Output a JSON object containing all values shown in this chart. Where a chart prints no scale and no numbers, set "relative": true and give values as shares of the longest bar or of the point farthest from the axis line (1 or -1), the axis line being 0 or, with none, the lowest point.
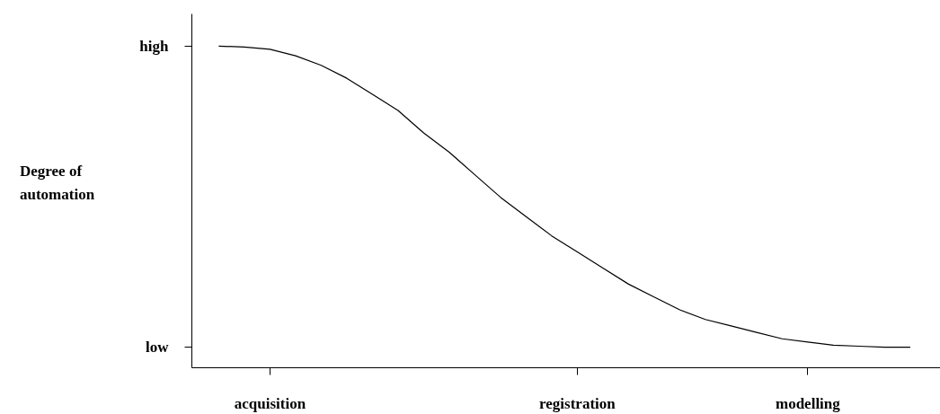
{
  "chart_data": {
    "type": "line",
    "relative": true,
    "annotations": [
      "high",
      "low",
      "Degree of automation"
    ],
    "categories": [
      null,
      null,
      "acquisition",
      null,
      null,
      null,
      null,
      null,
      null,
      null,
      null,
      null,
      null,
      null,
      "registration",
      null,
      null,
      null,
      null,
      null,
      null,
      null,
      null,
      "modelling",
      null,
      null,
      null,
      null
    ],
    "series": [
      {
        "color": "#000000",
        "values": [
          1.0,
          0.997,
          0.99,
          0.97,
          0.94,
          0.9,
          0.85,
          0.8,
          0.73,
          0.67,
          0.6,
          0.53,
          0.47,
          0.41,
          0.36,
          0.31,
          0.26,
          0.22,
          0.18,
          0.15,
          0.13,
          0.11,
          0.09,
          0.08,
          0.07,
          0.067,
          0.064,
          0.064
        ]
      }
    ],
    "grid": false,
    "marker": "none",
    "line_style": "solid"
  }
}
